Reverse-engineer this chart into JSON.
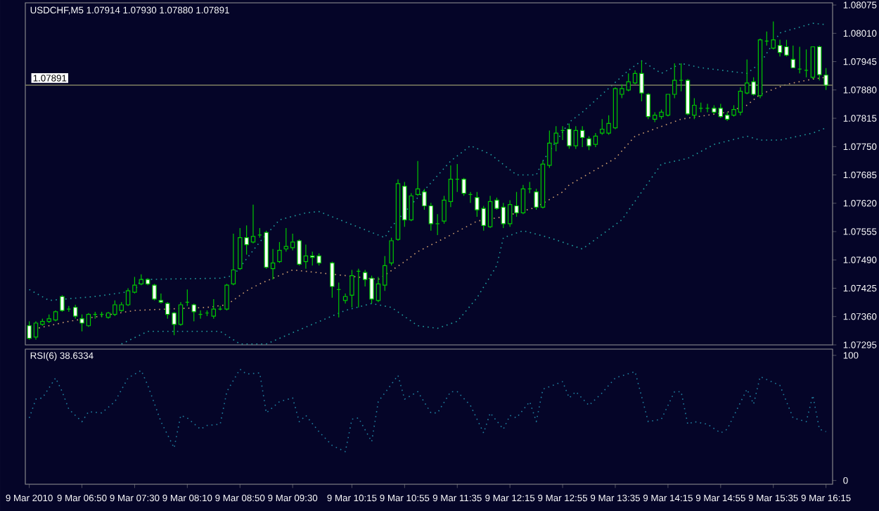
{
  "chart_data": [
    {
      "type": "candlestick",
      "title": "USDCHF,M5  1.07914 1.07930 1.07880 1.07891",
      "color": "#00c800",
      "x": [
        "2010-03-09T06:10",
        "2010-03-09T06:15",
        "2010-03-09T06:20",
        "2010-03-09T06:25",
        "2010-03-09T06:30",
        "2010-03-09T06:35",
        "2010-03-09T06:40",
        "2010-03-09T06:45",
        "2010-03-09T06:50",
        "2010-03-09T06:55",
        "2010-03-09T07:00",
        "2010-03-09T07:05",
        "2010-03-09T07:10",
        "2010-03-09T07:15",
        "2010-03-09T07:20",
        "2010-03-09T07:25",
        "2010-03-09T07:30",
        "2010-03-09T07:35",
        "2010-03-09T07:40",
        "2010-03-09T07:45",
        "2010-03-09T07:50",
        "2010-03-09T07:55",
        "2010-03-09T08:00",
        "2010-03-09T08:05",
        "2010-03-09T08:10",
        "2010-03-09T08:15",
        "2010-03-09T08:20",
        "2010-03-09T08:25",
        "2010-03-09T08:30",
        "2010-03-09T08:35",
        "2010-03-09T08:40",
        "2010-03-09T08:45",
        "2010-03-09T08:50",
        "2010-03-09T08:55",
        "2010-03-09T09:00",
        "2010-03-09T09:05",
        "2010-03-09T09:10",
        "2010-03-09T09:15",
        "2010-03-09T09:20",
        "2010-03-09T09:25",
        "2010-03-09T09:30",
        "2010-03-09T09:35",
        "2010-03-09T09:40",
        "2010-03-09T09:45",
        "2010-03-09T09:50",
        "2010-03-09T10:00",
        "2010-03-09T10:05",
        "2010-03-09T10:10",
        "2010-03-09T10:15",
        "2010-03-09T10:20",
        "2010-03-09T10:25",
        "2010-03-09T10:30",
        "2010-03-09T10:35",
        "2010-03-09T10:40",
        "2010-03-09T10:45",
        "2010-03-09T10:50",
        "2010-03-09T10:55",
        "2010-03-09T11:00",
        "2010-03-09T11:05",
        "2010-03-09T11:10",
        "2010-03-09T11:15",
        "2010-03-09T11:20",
        "2010-03-09T11:25",
        "2010-03-09T11:30",
        "2010-03-09T11:35",
        "2010-03-09T11:40",
        "2010-03-09T11:45",
        "2010-03-09T11:50",
        "2010-03-09T11:55",
        "2010-03-09T12:00",
        "2010-03-09T12:05",
        "2010-03-09T12:10",
        "2010-03-09T12:15",
        "2010-03-09T12:20",
        "2010-03-09T12:25",
        "2010-03-09T12:30",
        "2010-03-09T12:35",
        "2010-03-09T12:40",
        "2010-03-09T12:45",
        "2010-03-09T12:50",
        "2010-03-09T12:55",
        "2010-03-09T13:00",
        "2010-03-09T13:05",
        "2010-03-09T13:10",
        "2010-03-09T13:15",
        "2010-03-09T13:20",
        "2010-03-09T13:25",
        "2010-03-09T13:30",
        "2010-03-09T13:35",
        "2010-03-09T13:40",
        "2010-03-09T13:45",
        "2010-03-09T13:50",
        "2010-03-09T13:55",
        "2010-03-09T14:00",
        "2010-03-09T14:05",
        "2010-03-09T14:10",
        "2010-03-09T14:15",
        "2010-03-09T14:20",
        "2010-03-09T14:25",
        "2010-03-09T14:30",
        "2010-03-09T14:35",
        "2010-03-09T14:40",
        "2010-03-09T14:45",
        "2010-03-09T14:50",
        "2010-03-09T14:55",
        "2010-03-09T15:00",
        "2010-03-09T15:05",
        "2010-03-09T15:10",
        "2010-03-09T15:15",
        "2010-03-09T15:20",
        "2010-03-09T15:25",
        "2010-03-09T15:30",
        "2010-03-09T15:35",
        "2010-03-09T15:40",
        "2010-03-09T15:45",
        "2010-03-09T15:50",
        "2010-03-09T15:55",
        "2010-03-09T16:00",
        "2010-03-09T16:05",
        "2010-03-09T16:10",
        "2010-03-09T16:15"
      ],
      "ohlc": [
        [
          1.07339,
          1.07349,
          1.07307,
          1.0731
        ],
        [
          1.07313,
          1.07349,
          1.07307,
          1.07345
        ],
        [
          1.07342,
          1.07355,
          1.07339,
          1.07349
        ],
        [
          1.07349,
          1.07365,
          1.07345,
          1.07355
        ],
        [
          1.07352,
          1.07374,
          1.07349,
          1.07371
        ],
        [
          1.07406,
          1.07409,
          1.07371,
          1.07374
        ],
        [
          1.07377,
          1.07384,
          1.07371,
          1.07377
        ],
        [
          1.07381,
          1.07387,
          1.07355,
          1.07361
        ],
        [
          1.07355,
          1.07365,
          1.07326,
          1.07345
        ],
        [
          1.07339,
          1.07368,
          1.07336,
          1.07365
        ],
        [
          1.07365,
          1.07371,
          1.07355,
          1.07365
        ],
        [
          1.07365,
          1.07371,
          1.07358,
          1.07365
        ],
        [
          1.07358,
          1.07371,
          1.07355,
          1.07368
        ],
        [
          1.07365,
          1.07397,
          1.07361,
          1.07387
        ],
        [
          1.07374,
          1.07393,
          1.07371,
          1.07387
        ],
        [
          1.07387,
          1.07425,
          1.07384,
          1.07419
        ],
        [
          1.07416,
          1.07451,
          1.07413,
          1.07432
        ],
        [
          1.07435,
          1.07457,
          1.07432,
          1.07445
        ],
        [
          1.07445,
          1.07448,
          1.07432,
          1.07435
        ],
        [
          1.07432,
          1.07435,
          1.07397,
          1.074
        ],
        [
          1.07397,
          1.07413,
          1.0739,
          1.07393
        ],
        [
          1.0739,
          1.07393,
          1.07355,
          1.07365
        ],
        [
          1.07368,
          1.07371,
          1.07317,
          1.07342
        ],
        [
          1.07342,
          1.07393,
          1.07339,
          1.07387
        ],
        [
          1.07393,
          1.07422,
          1.07384,
          1.07393
        ],
        [
          1.07387,
          1.0739,
          1.07349,
          1.07371
        ],
        [
          1.07365,
          1.07374,
          1.07355,
          1.07365
        ],
        [
          1.07368,
          1.07374,
          1.07361,
          1.07368
        ],
        [
          1.07361,
          1.074,
          1.07355,
          1.07377
        ],
        [
          1.07377,
          1.07384,
          1.07374,
          1.07377
        ],
        [
          1.07377,
          1.07435,
          1.07374,
          1.07432
        ],
        [
          1.07435,
          1.0755,
          1.07432,
          1.07467
        ],
        [
          1.0747,
          1.07563,
          1.07467,
          1.07541
        ],
        [
          1.07541,
          1.07569,
          1.07502,
          1.07525
        ],
        [
          1.07531,
          1.07617,
          1.07528,
          1.07544
        ],
        [
          1.07547,
          1.07563,
          1.07541,
          1.07547
        ],
        [
          1.07553,
          1.07557,
          1.0747,
          1.07473
        ],
        [
          1.0747,
          1.07515,
          1.07445,
          1.07483
        ],
        [
          1.07486,
          1.07531,
          1.07483,
          1.07512
        ],
        [
          1.07515,
          1.07563,
          1.07509,
          1.07521
        ],
        [
          1.07518,
          1.0755,
          1.07512,
          1.07531
        ],
        [
          1.07534,
          1.07537,
          1.07477,
          1.0748
        ],
        [
          1.07486,
          1.07525,
          1.0747,
          1.07499
        ],
        [
          1.07499,
          1.07509,
          1.07477,
          1.07496
        ],
        [
          1.07499,
          1.07505,
          1.07477,
          1.07483
        ],
        [
          1.07483,
          1.07486,
          1.07403,
          1.07429
        ],
        [
          1.07422,
          1.07438,
          1.07358,
          1.07422
        ],
        [
          1.07397,
          1.07413,
          1.0739,
          1.07406
        ],
        [
          1.07409,
          1.07467,
          1.07381,
          1.07454
        ],
        [
          1.07464,
          1.0747,
          1.07381,
          1.07464
        ],
        [
          1.07461,
          1.07467,
          1.07429,
          1.07445
        ],
        [
          1.07448,
          1.07454,
          1.0739,
          1.074
        ],
        [
          1.07397,
          1.07451,
          1.07393,
          1.07435
        ],
        [
          1.07432,
          1.07499,
          1.07419,
          1.07477
        ],
        [
          1.07483,
          1.07541,
          1.07477,
          1.07534
        ],
        [
          1.07537,
          1.07675,
          1.07534,
          1.07665
        ],
        [
          1.07659,
          1.07669,
          1.07566,
          1.07582
        ],
        [
          1.07582,
          1.07643,
          1.07579,
          1.07637
        ],
        [
          1.0764,
          1.07717,
          1.07637,
          1.07653
        ],
        [
          1.07646,
          1.07653,
          1.07605,
          1.07614
        ],
        [
          1.07614,
          1.07621,
          1.07557,
          1.07573
        ],
        [
          1.07573,
          1.07595,
          1.07547,
          1.07573
        ],
        [
          1.07579,
          1.07637,
          1.07573,
          1.07627
        ],
        [
          1.07624,
          1.07707,
          1.07611,
          1.07675
        ],
        [
          1.07675,
          1.0771,
          1.07646,
          1.07675
        ],
        [
          1.07675,
          1.07678,
          1.07637,
          1.07643
        ],
        [
          1.0764,
          1.07646,
          1.07621,
          1.0764
        ],
        [
          1.07633,
          1.07646,
          1.07589,
          1.07605
        ],
        [
          1.07608,
          1.07614,
          1.07557,
          1.07569
        ],
        [
          1.07566,
          1.07637,
          1.07563,
          1.07624
        ],
        [
          1.07627,
          1.07633,
          1.07605,
          1.07608
        ],
        [
          1.07611,
          1.07621,
          1.07563,
          1.07573
        ],
        [
          1.07573,
          1.07627,
          1.07566,
          1.07617
        ],
        [
          1.07614,
          1.07646,
          1.07589,
          1.07598
        ],
        [
          1.07598,
          1.07662,
          1.07595,
          1.07653
        ],
        [
          1.07653,
          1.07669,
          1.07643,
          1.07653
        ],
        [
          1.07646,
          1.07653,
          1.07605,
          1.07611
        ],
        [
          1.07611,
          1.07717,
          1.07608,
          1.0771
        ],
        [
          1.07707,
          1.07787,
          1.07701,
          1.07758
        ],
        [
          1.07758,
          1.07797,
          1.07739,
          1.07781
        ],
        [
          1.07787,
          1.07797,
          1.07765,
          1.07787
        ],
        [
          1.0779,
          1.07803,
          1.07745,
          1.07752
        ],
        [
          1.07752,
          1.07797,
          1.07745,
          1.07787
        ],
        [
          1.07787,
          1.07797,
          1.07749,
          1.07771
        ],
        [
          1.07768,
          1.07774,
          1.07742,
          1.07752
        ],
        [
          1.07755,
          1.07781,
          1.07749,
          1.07774
        ],
        [
          1.07781,
          1.07813,
          1.07777,
          1.0779
        ],
        [
          1.07781,
          1.07822,
          1.07777,
          1.07803
        ],
        [
          1.07793,
          1.07886,
          1.0779,
          1.07883
        ],
        [
          1.0787,
          1.07893,
          1.07861,
          1.07883
        ],
        [
          1.0788,
          1.07918,
          1.07877,
          1.07899
        ],
        [
          1.07896,
          1.07925,
          1.07893,
          1.07918
        ],
        [
          1.07918,
          1.07947,
          1.07854,
          1.07873
        ],
        [
          1.0787,
          1.07873,
          1.07813,
          1.07819
        ],
        [
          1.07813,
          1.07829,
          1.07806,
          1.07822
        ],
        [
          1.07819,
          1.07835,
          1.07813,
          1.07829
        ],
        [
          1.07822,
          1.0787,
          1.07819,
          1.0787
        ],
        [
          1.0787,
          1.07941,
          1.07861,
          1.07902
        ],
        [
          1.07902,
          1.07941,
          1.07877,
          1.07902
        ],
        [
          1.07902,
          1.07905,
          1.07822,
          1.07825
        ],
        [
          1.07822,
          1.07861,
          1.07813,
          1.07845
        ],
        [
          1.07838,
          1.07851,
          1.07829,
          1.07838
        ],
        [
          1.07838,
          1.07848,
          1.07829,
          1.07838
        ],
        [
          1.07838,
          1.07845,
          1.07825,
          1.07829
        ],
        [
          1.07838,
          1.07848,
          1.07816,
          1.07819
        ],
        [
          1.07822,
          1.07829,
          1.07809,
          1.07813
        ],
        [
          1.07822,
          1.07845,
          1.07819,
          1.07835
        ],
        [
          1.07829,
          1.07886,
          1.07822,
          1.07877
        ],
        [
          1.07873,
          1.0795,
          1.0787,
          1.07896
        ],
        [
          1.07899,
          1.07909,
          1.07867,
          1.0787
        ],
        [
          1.07867,
          1.07998,
          1.07861,
          1.07995
        ],
        [
          1.07992,
          1.08014,
          1.07982,
          1.07992
        ],
        [
          1.07976,
          1.08037,
          1.07973,
          1.07995
        ],
        [
          1.07982,
          1.07995,
          1.07957,
          1.07966
        ],
        [
          1.07979,
          1.07995,
          1.07957,
          1.0796
        ],
        [
          1.0795,
          1.07982,
          1.07931,
          1.07931
        ],
        [
          1.07928,
          1.07979,
          1.07918,
          1.07928
        ],
        [
          1.07925,
          1.07973,
          1.07909,
          1.07925
        ],
        [
          1.07909,
          1.07979,
          1.07905,
          1.07979
        ],
        [
          1.07979,
          1.07982,
          1.07902,
          1.07915
        ],
        [
          1.07914,
          1.0793,
          1.0788,
          1.07891
        ]
      ],
      "series": [
        {
          "type": "line",
          "color": "#20a0a0",
          "line_style": "dotted",
          "x": [
            "2010-03-09T06:10",
            "2010-03-09T06:25",
            "2010-03-09T07:00",
            "2010-03-09T07:30",
            "2010-03-09T07:35",
            "2010-03-09T08:35",
            "2010-03-09T08:45",
            "2010-03-09T09:05",
            "2010-03-09T09:20",
            "2010-03-09T09:40",
            "2010-03-09T09:50",
            "2010-03-09T10:40",
            "2010-03-09T10:45",
            "2010-03-09T11:30",
            "2010-03-09T11:45",
            "2010-03-09T12:00",
            "2010-03-09T12:20",
            "2010-03-09T12:35",
            "2010-03-09T12:40",
            "2010-03-09T13:00",
            "2010-03-09T13:10",
            "2010-03-09T13:45",
            "2010-03-09T13:55",
            "2010-03-09T14:10",
            "2010-03-09T14:25",
            "2010-03-09T14:40",
            "2010-03-09T15:15",
            "2010-03-09T15:25",
            "2010-03-09T15:40",
            "2010-03-09T16:05",
            "2010-03-09T16:15"
          ],
          "values": [
            1.07422,
            1.07397,
            1.07406,
            1.07419,
            1.07445,
            1.07448,
            1.07454,
            1.07531,
            1.07582,
            1.07598,
            1.07601,
            1.07541,
            1.07566,
            1.07717,
            1.07752,
            1.07733,
            1.07685,
            1.07685,
            1.07717,
            1.07806,
            1.07829,
            1.07925,
            1.07947,
            1.07918,
            1.07941,
            1.07931,
            1.07918,
            1.07941,
            1.08011,
            1.08033,
            1.0803
          ]
        },
        {
          "type": "line",
          "color": "#d0a070",
          "line_style": "dotted",
          "x": [
            "2010-03-09T06:10",
            "2010-03-09T06:40",
            "2010-03-09T07:30",
            "2010-03-09T08:25",
            "2010-03-09T08:40",
            "2010-03-09T08:55",
            "2010-03-09T09:05",
            "2010-03-09T09:30",
            "2010-03-09T10:10",
            "2010-03-09T10:35",
            "2010-03-09T10:55",
            "2010-03-09T11:05",
            "2010-03-09T11:30",
            "2010-03-09T11:50",
            "2010-03-09T12:10",
            "2010-03-09T12:35",
            "2010-03-09T12:55",
            "2010-03-09T13:00",
            "2010-03-09T13:35",
            "2010-03-09T13:50",
            "2010-03-09T14:25",
            "2010-03-09T15:00",
            "2010-03-09T15:15",
            "2010-03-09T15:25",
            "2010-03-09T15:45",
            "2010-03-09T16:05",
            "2010-03-09T16:15"
          ],
          "values": [
            1.07329,
            1.07349,
            1.07374,
            1.07381,
            1.07387,
            1.07419,
            1.07435,
            1.07467,
            1.07454,
            1.07445,
            1.07486,
            1.07509,
            1.07547,
            1.07579,
            1.07589,
            1.07611,
            1.07646,
            1.07662,
            1.07723,
            1.07774,
            1.07813,
            1.07829,
            1.07845,
            1.0787,
            1.07893,
            1.07905,
            1.07909
          ]
        },
        {
          "type": "line",
          "color": "#20a0a0",
          "line_style": "dotted",
          "x": [
            "2010-03-09T07:20",
            "2010-03-09T07:40",
            "2010-03-09T08:35",
            "2010-03-09T08:50",
            "2010-03-09T09:10",
            "2010-03-09T09:30",
            "2010-03-09T10:10",
            "2010-03-09T10:30",
            "2010-03-09T10:45",
            "2010-03-09T11:05",
            "2010-03-09T11:20",
            "2010-03-09T11:35",
            "2010-03-09T11:50",
            "2010-03-09T12:05",
            "2010-03-09T12:10",
            "2010-03-09T12:25",
            "2010-03-09T12:45",
            "2010-03-09T13:10",
            "2010-03-09T13:40",
            "2010-03-09T14:10",
            "2010-03-09T14:30",
            "2010-03-09T14:50",
            "2010-03-09T15:15",
            "2010-03-09T15:25",
            "2010-03-09T15:40",
            "2010-03-09T16:05",
            "2010-03-09T16:15"
          ],
          "values": [
            1.07297,
            1.07326,
            1.07326,
            1.07297,
            1.07297,
            1.07323,
            1.07374,
            1.0739,
            1.07381,
            1.07339,
            1.07333,
            1.07349,
            1.07403,
            1.07477,
            1.07541,
            1.07557,
            1.07541,
            1.07515,
            1.07582,
            1.0771,
            1.07723,
            1.07755,
            1.07774,
            1.07765,
            1.07765,
            1.07781,
            1.07793
          ]
        }
      ],
      "ref_lines": [
        {
          "axis": "y",
          "value": 1.07891,
          "label": "1.07891",
          "color": "#808060"
        }
      ],
      "xlim": [
        "2010-03-09T06:07",
        "2010-03-09T16:20"
      ],
      "ylim": [
        1.07295,
        1.0808
      ],
      "yticks": [
        1.08075,
        {
          "value": 1.0801,
          "label": "1.08010"
        },
        1.07945,
        {
          "value": 1.0788,
          "label": "1.07880"
        },
        1.07815,
        {
          "value": 1.0775,
          "label": "1.07750"
        },
        1.07685,
        {
          "value": 1.0762,
          "label": "1.07620"
        },
        1.07555,
        {
          "value": 1.0749,
          "label": "1.07490"
        },
        1.07425,
        {
          "value": 1.0736,
          "label": "1.07360"
        },
        1.07295
      ],
      "tick_labels": "y"
    },
    {
      "type": "line",
      "title": "RSI(6) 38.6334",
      "series": [
        {
          "color": "#2080a0",
          "line_style": "dotted",
          "x": [
            "2010-03-09T06:10",
            "2010-03-09T06:15",
            "2010-03-09T06:20",
            "2010-03-09T06:30",
            "2010-03-09T06:35",
            "2010-03-09T06:40",
            "2010-03-09T06:50",
            "2010-03-09T06:55",
            "2010-03-09T07:05",
            "2010-03-09T07:15",
            "2010-03-09T07:25",
            "2010-03-09T07:35",
            "2010-03-09T07:40",
            "2010-03-09T07:50",
            "2010-03-09T08:00",
            "2010-03-09T08:05",
            "2010-03-09T08:10",
            "2010-03-09T08:20",
            "2010-03-09T08:25",
            "2010-03-09T08:35",
            "2010-03-09T08:40",
            "2010-03-09T08:50",
            "2010-03-09T08:55",
            "2010-03-09T09:05",
            "2010-03-09T09:10",
            "2010-03-09T09:20",
            "2010-03-09T09:30",
            "2010-03-09T09:35",
            "2010-03-09T09:40",
            "2010-03-09T09:50",
            "2010-03-09T10:00",
            "2010-03-09T10:10",
            "2010-03-09T10:15",
            "2010-03-09T10:20",
            "2010-03-09T10:30",
            "2010-03-09T10:35",
            "2010-03-09T10:50",
            "2010-03-09T10:55",
            "2010-03-09T11:05",
            "2010-03-09T11:15",
            "2010-03-09T11:20",
            "2010-03-09T11:30",
            "2010-03-09T11:35",
            "2010-03-09T11:45",
            "2010-03-09T11:55",
            "2010-03-09T12:00",
            "2010-03-09T12:10",
            "2010-03-09T12:15",
            "2010-03-09T12:20",
            "2010-03-09T12:30",
            "2010-03-09T12:35",
            "2010-03-09T12:40",
            "2010-03-09T12:55",
            "2010-03-09T13:00",
            "2010-03-09T13:05",
            "2010-03-09T13:15",
            "2010-03-09T13:25",
            "2010-03-09T13:35",
            "2010-03-09T13:50",
            "2010-03-09T14:00",
            "2010-03-09T14:10",
            "2010-03-09T14:20",
            "2010-03-09T14:25",
            "2010-03-09T14:30",
            "2010-03-09T14:35",
            "2010-03-09T14:45",
            "2010-03-09T14:55",
            "2010-03-09T15:00",
            "2010-03-09T15:15",
            "2010-03-09T15:20",
            "2010-03-09T15:25",
            "2010-03-09T15:40",
            "2010-03-09T15:50",
            "2010-03-09T16:00",
            "2010-03-09T16:05",
            "2010-03-09T16:10",
            "2010-03-09T16:15"
          ],
          "values": [
            50,
            65,
            66,
            82,
            71,
            57,
            47,
            55,
            54,
            63,
            82,
            88,
            76,
            47,
            26,
            52,
            50,
            41,
            44,
            45,
            71,
            89,
            85,
            86,
            54,
            63,
            66,
            47,
            52,
            39,
            28,
            23,
            49,
            50,
            31,
            63,
            84,
            65,
            71,
            54,
            54,
            71,
            71,
            60,
            38,
            54,
            41,
            52,
            50,
            63,
            47,
            73,
            79,
            66,
            71,
            60,
            70,
            82,
            87,
            47,
            49,
            71,
            71,
            45,
            47,
            45,
            38,
            41,
            73,
            61,
            83,
            76,
            50,
            47,
            68,
            41,
            39
          ]
        }
      ],
      "xlim": [
        "2010-03-09T06:07",
        "2010-03-09T16:20"
      ],
      "ylim": [
        -3,
        105
      ],
      "yticks": [
        0,
        100
      ],
      "xticks": [
        {
          "value": "2010-03-09T06:10",
          "label": "9 Mar 2010"
        },
        {
          "value": "2010-03-09T06:50",
          "label": "9 Mar 06:50"
        },
        {
          "value": "2010-03-09T07:30",
          "label": "9 Mar 07:30"
        },
        {
          "value": "2010-03-09T08:10",
          "label": "9 Mar 08:10"
        },
        {
          "value": "2010-03-09T08:50",
          "label": "9 Mar 08:50"
        },
        {
          "value": "2010-03-09T09:30",
          "label": "9 Mar 09:30"
        },
        {
          "value": "2010-03-09T10:15",
          "label": "9 Mar 10:15"
        },
        {
          "value": "2010-03-09T10:55",
          "label": "9 Mar 10:55"
        },
        {
          "value": "2010-03-09T11:35",
          "label": "9 Mar 11:35"
        },
        {
          "value": "2010-03-09T12:15",
          "label": "9 Mar 12:15"
        },
        {
          "value": "2010-03-09T12:55",
          "label": "9 Mar 12:55"
        },
        {
          "value": "2010-03-09T13:35",
          "label": "9 Mar 13:35"
        },
        {
          "value": "2010-03-09T14:15",
          "label": "9 Mar 14:15"
        },
        {
          "value": "2010-03-09T14:55",
          "label": "9 Mar 14:55"
        },
        {
          "value": "2010-03-09T15:35",
          "label": "9 Mar 15:35"
        },
        {
          "value": "2010-03-09T16:15",
          "label": "9 Mar 16:15"
        }
      ]
    }
  ]
}
